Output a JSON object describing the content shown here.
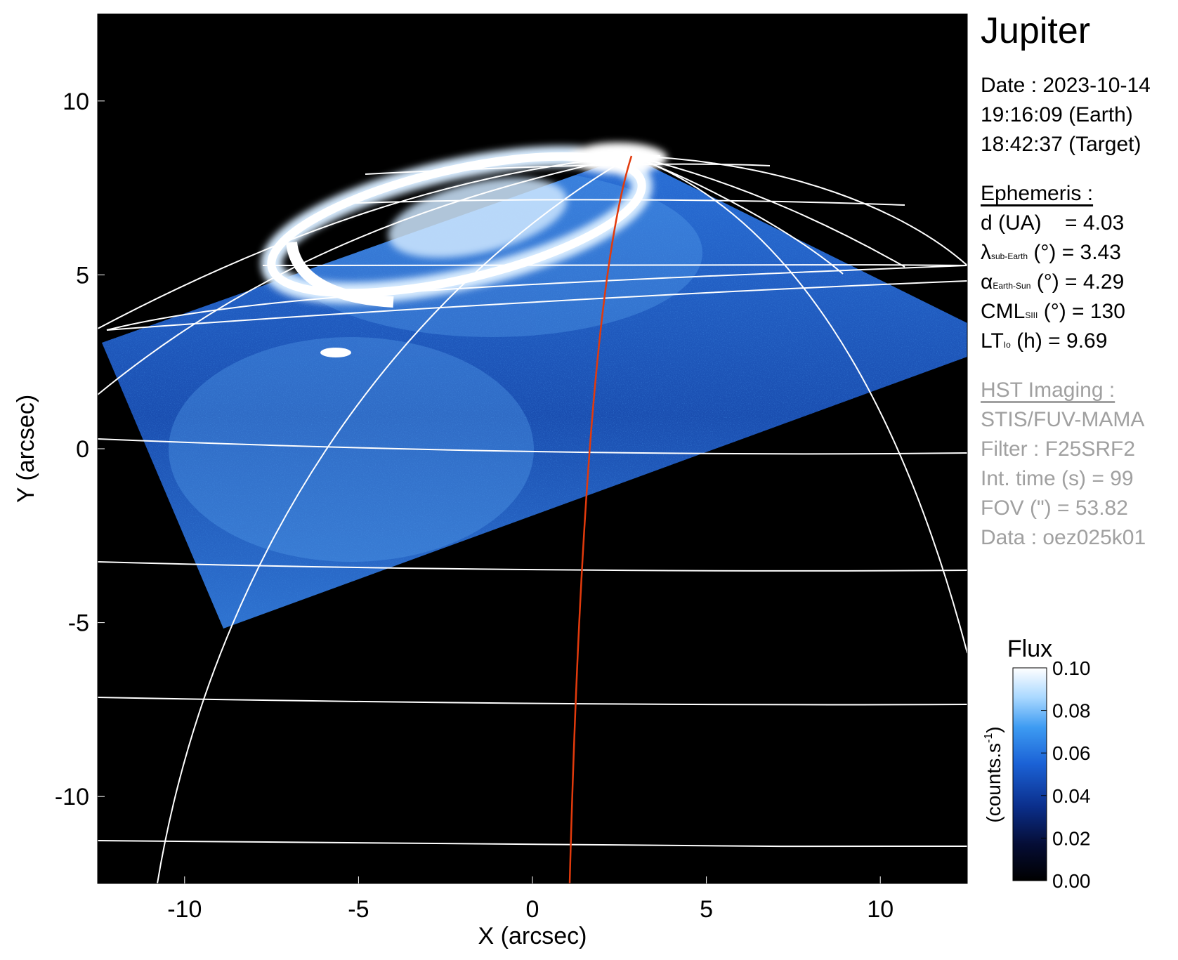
{
  "chart_data": {
    "type": "heatmap",
    "title": "Jupiter",
    "xlabel": "X (arcsec)",
    "ylabel": "Y (arcsec)",
    "xlim": [
      -12.5,
      12.5
    ],
    "ylim": [
      -12.5,
      12.5
    ],
    "x_ticks": [
      -10,
      -5,
      0,
      5,
      10
    ],
    "y_ticks": [
      -10,
      -5,
      0,
      5,
      10
    ],
    "x_tick_labels": [
      "-10",
      "-5",
      "0",
      "5",
      "10"
    ],
    "y_tick_labels": [
      "-10",
      "-5",
      "0",
      "5",
      "10"
    ],
    "grid": false,
    "planet_overlay": "latitude-longitude grid (white)",
    "footprint_curve_color": "#e23a0c",
    "colorbar": {
      "title": "Flux",
      "unit_label": "(counts.s-1)",
      "range": [
        0.0,
        0.1
      ],
      "ticks": [
        0.0,
        0.02,
        0.04,
        0.06,
        0.08,
        0.1
      ],
      "tick_labels": [
        "0.00",
        "0.02",
        "0.04",
        "0.06",
        "0.08",
        "0.10"
      ],
      "colormap": [
        "#000000",
        "#050d35",
        "#0b2f8c",
        "#1b62d6",
        "#3d9bf2",
        "#a9d8ff",
        "#ffffff"
      ]
    }
  },
  "info": {
    "title": "Jupiter",
    "date_line": "Date : 2023-10-14",
    "earth_time": "19:16:09 (Earth)",
    "target_time": "18:42:37 (Target)",
    "ephemeris_header": "Ephemeris :",
    "ephemeris": {
      "distance": {
        "label": "d (UA)",
        "value": "= 4.03"
      },
      "sub_earth": {
        "symbol": "λ",
        "subscript": "sub-Earth",
        "value": "(°) = 3.43"
      },
      "earth_sun": {
        "symbol": "α",
        "subscript": "Earth-Sun",
        "value": "(°) = 4.29"
      },
      "cml": {
        "symbol": "CML",
        "subscript": "SIII",
        "value": "(°) = 130"
      },
      "lt": {
        "symbol": "LT",
        "subscript": "Io",
        "value": "(h) = 9.69"
      }
    },
    "hst_header": "HST Imaging :",
    "instrument": "STIS/FUV-MAMA",
    "filter": "Filter : F25SRF2",
    "int_time": "Int. time (s) = 99",
    "fov": "FOV (\") = 53.82",
    "dataset": "Data : oez025k01"
  }
}
